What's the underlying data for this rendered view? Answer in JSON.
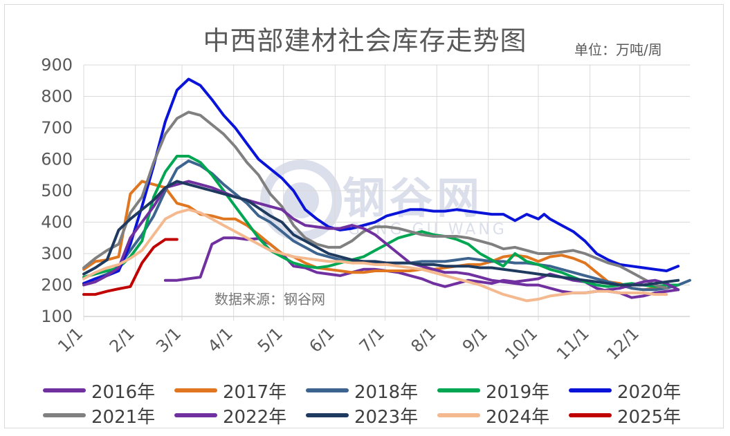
{
  "title": "中西部建材社会库存走势图",
  "unit": "单位：万吨/周",
  "source": "数据来源：钢谷网",
  "watermark": {
    "text": "钢谷网",
    "sub": "GANG GU WANG"
  },
  "chart_data": {
    "type": "line",
    "title": "中西部建材社会库存走势图",
    "xlabel": "",
    "ylabel": "",
    "x_ticks": [
      "1/1",
      "2/1",
      "3/1",
      "4/1",
      "5/1",
      "6/1",
      "7/1",
      "8/1",
      "9/1",
      "10/1",
      "11/1",
      "12/1"
    ],
    "y_ticks": [
      100,
      200,
      300,
      400,
      500,
      600,
      700,
      800,
      900
    ],
    "ylim": [
      100,
      900
    ],
    "grid": "horizontal",
    "legend_position": "bottom",
    "series": [
      {
        "name": "2016年",
        "color": "#7030a0",
        "weeks": [
          8,
          9,
          10,
          11,
          12,
          13,
          14,
          15,
          16,
          17,
          18,
          19,
          20,
          21,
          22,
          23,
          24,
          25,
          26,
          27,
          28,
          29,
          30,
          31,
          32,
          33,
          34,
          35,
          36,
          37,
          38,
          39,
          40,
          41,
          42,
          43,
          44,
          45,
          46,
          47,
          48,
          49,
          50,
          51,
          52
        ],
        "values": [
          215,
          215,
          220,
          225,
          330,
          350,
          350,
          345,
          348,
          330,
          300,
          260,
          255,
          240,
          235,
          230,
          240,
          250,
          250,
          245,
          240,
          230,
          220,
          205,
          195,
          205,
          215,
          210,
          205,
          215,
          210,
          215,
          220,
          235,
          225,
          215,
          210,
          190,
          180,
          175,
          160,
          165,
          175,
          180,
          185
        ]
      },
      {
        "name": "2017年",
        "color": "#e0761f",
        "weeks": [
          1,
          2,
          3,
          4,
          5,
          6,
          7,
          8,
          9,
          10,
          11,
          12,
          13,
          14,
          15,
          16,
          17,
          18,
          19,
          20,
          21,
          22,
          23,
          24,
          25,
          26,
          27,
          28,
          29,
          30,
          31,
          32,
          33,
          34,
          35,
          36,
          37,
          38,
          39,
          40,
          41,
          42,
          43,
          44,
          45,
          46,
          47,
          48,
          49,
          50,
          51,
          52
        ],
        "values": [
          250,
          275,
          280,
          290,
          490,
          530,
          520,
          510,
          460,
          450,
          425,
          420,
          410,
          410,
          390,
          360,
          330,
          300,
          290,
          270,
          255,
          250,
          245,
          240,
          240,
          245,
          245,
          245,
          245,
          250,
          250,
          255,
          260,
          265,
          265,
          275,
          290,
          295,
          290,
          275,
          290,
          295,
          285,
          270,
          240,
          210,
          205,
          190,
          185,
          190,
          200,
          200
        ]
      },
      {
        "name": "2018年",
        "color": "#3d648f",
        "weeks": [
          1,
          2,
          3,
          4,
          5,
          6,
          7,
          8,
          9,
          10,
          11,
          12,
          13,
          14,
          15,
          16,
          17,
          18,
          19,
          20,
          21,
          22,
          23,
          24,
          25,
          26,
          27,
          28,
          29,
          30,
          31,
          32,
          33,
          34,
          35,
          36,
          37,
          38,
          39,
          40,
          41,
          42,
          43,
          44,
          45,
          46,
          47,
          48,
          49,
          50,
          51,
          52,
          53
        ],
        "values": [
          205,
          220,
          235,
          260,
          310,
          360,
          420,
          500,
          570,
          595,
          580,
          555,
          520,
          490,
          460,
          420,
          400,
          370,
          340,
          320,
          300,
          290,
          280,
          275,
          275,
          270,
          270,
          270,
          270,
          275,
          275,
          275,
          280,
          285,
          280,
          275,
          275,
          270,
          270,
          265,
          260,
          250,
          240,
          230,
          220,
          210,
          200,
          190,
          185,
          185,
          190,
          200,
          215
        ]
      },
      {
        "name": "2019年",
        "color": "#00a651",
        "weeks": [
          1,
          2,
          3,
          4,
          5,
          6,
          7,
          8,
          9,
          10,
          11,
          12,
          13,
          14,
          15,
          16,
          17,
          18,
          19,
          20,
          21,
          22,
          23,
          24,
          25,
          26,
          27,
          28,
          29,
          30,
          31,
          32,
          33,
          34,
          35,
          36,
          37,
          38,
          39,
          40,
          41,
          42,
          43,
          44,
          45,
          46,
          47,
          48,
          49,
          50,
          51,
          52
        ],
        "values": [
          225,
          235,
          245,
          255,
          290,
          340,
          480,
          560,
          610,
          610,
          590,
          550,
          500,
          450,
          400,
          350,
          310,
          290,
          270,
          260,
          255,
          260,
          270,
          280,
          290,
          310,
          330,
          350,
          360,
          370,
          360,
          355,
          345,
          330,
          300,
          280,
          260,
          300,
          275,
          265,
          250,
          240,
          225,
          210,
          200,
          195,
          200,
          205,
          200,
          195,
          200,
          200
        ]
      },
      {
        "name": "2020年",
        "color": "#0a14d8",
        "weeks": [
          1,
          2,
          3,
          4,
          5,
          6,
          7,
          8,
          9,
          10,
          11,
          12,
          13,
          14,
          15,
          16,
          17,
          18,
          19,
          20,
          21,
          22,
          23,
          24,
          25,
          26,
          27,
          28,
          29,
          30,
          31,
          32,
          33,
          34,
          35,
          36,
          37,
          38,
          39,
          40,
          40.5,
          41,
          42,
          43,
          44,
          45,
          46,
          47,
          48,
          49,
          50,
          51,
          52
        ],
        "values": [
          205,
          220,
          230,
          245,
          330,
          450,
          580,
          720,
          820,
          855,
          835,
          790,
          740,
          700,
          650,
          600,
          570,
          540,
          500,
          440,
          410,
          385,
          375,
          380,
          390,
          400,
          420,
          430,
          440,
          440,
          435,
          435,
          440,
          435,
          430,
          425,
          425,
          405,
          425,
          410,
          425,
          410,
          390,
          370,
          340,
          300,
          280,
          265,
          260,
          255,
          250,
          245,
          260
        ]
      },
      {
        "name": "2021年",
        "color": "#808080",
        "weeks": [
          1,
          2,
          3,
          4,
          5,
          6,
          7,
          8,
          9,
          10,
          11,
          12,
          13,
          14,
          15,
          16,
          17,
          18,
          19,
          20,
          21,
          22,
          23,
          24,
          25,
          26,
          27,
          28,
          29,
          30,
          31,
          32,
          33,
          34,
          35,
          36,
          37,
          38,
          39,
          40,
          41,
          42,
          43,
          44,
          45,
          46,
          47,
          48,
          49,
          50,
          51
        ],
        "values": [
          255,
          285,
          310,
          330,
          430,
          480,
          590,
          680,
          730,
          750,
          740,
          710,
          680,
          640,
          590,
          550,
          490,
          450,
          390,
          350,
          330,
          320,
          320,
          340,
          370,
          385,
          385,
          380,
          370,
          360,
          355,
          355,
          355,
          350,
          340,
          330,
          315,
          320,
          310,
          300,
          300,
          305,
          310,
          300,
          285,
          270,
          260,
          240,
          220,
          200,
          190
        ]
      },
      {
        "name": "2022年",
        "color": "#7030a0",
        "weeks": [
          1,
          2,
          3,
          4,
          5,
          6,
          7,
          8,
          9,
          10,
          11,
          12,
          13,
          14,
          15,
          16,
          17,
          18,
          19,
          20,
          21,
          22,
          23,
          24,
          25,
          26,
          27,
          28,
          29,
          30,
          31,
          32,
          33,
          34,
          35,
          36,
          37,
          38,
          39,
          40,
          41,
          42,
          43,
          44,
          45,
          46,
          47,
          48,
          49,
          50,
          51,
          52
        ],
        "values": [
          200,
          210,
          230,
          255,
          350,
          400,
          450,
          510,
          520,
          530,
          520,
          510,
          495,
          480,
          470,
          460,
          450,
          440,
          410,
          390,
          385,
          380,
          380,
          390,
          380,
          360,
          330,
          300,
          270,
          260,
          250,
          240,
          240,
          235,
          225,
          215,
          210,
          205,
          200,
          200,
          190,
          180,
          175,
          175,
          180,
          185,
          190,
          200,
          210,
          215,
          205,
          185
        ]
      },
      {
        "name": "2023年",
        "color": "#1f3a5f",
        "weeks": [
          1,
          2,
          3,
          4,
          5,
          6,
          7,
          8,
          9,
          10,
          11,
          12,
          13,
          14,
          15,
          16,
          17,
          18,
          19,
          20,
          21,
          22,
          23,
          24,
          25,
          26,
          27,
          28,
          29,
          30,
          31,
          32,
          33,
          34,
          35,
          36,
          37,
          38,
          39,
          40,
          41,
          42,
          43,
          44,
          45,
          46,
          47,
          48,
          49,
          50,
          51,
          52
        ],
        "values": [
          235,
          255,
          280,
          375,
          410,
          440,
          470,
          510,
          530,
          520,
          510,
          500,
          490,
          480,
          470,
          445,
          420,
          400,
          360,
          340,
          320,
          300,
          290,
          280,
          275,
          275,
          270,
          270,
          270,
          265,
          265,
          260,
          260,
          260,
          255,
          255,
          250,
          245,
          240,
          235,
          230,
          225,
          220,
          215,
          210,
          205,
          200,
          200,
          200,
          205,
          210,
          215
        ]
      },
      {
        "name": "2024年",
        "color": "#f4b98e",
        "weeks": [
          1,
          2,
          3,
          4,
          5,
          6,
          7,
          8,
          9,
          10,
          11,
          12,
          13,
          14,
          15,
          16,
          17,
          18,
          19,
          20,
          21,
          22,
          23,
          24,
          25,
          26,
          27,
          28,
          29,
          30,
          31,
          32,
          33,
          34,
          35,
          36,
          37,
          38,
          39,
          40,
          41,
          42,
          43,
          44,
          45,
          46,
          47,
          48,
          49,
          50,
          51
        ],
        "values": [
          220,
          240,
          255,
          265,
          285,
          310,
          360,
          410,
          430,
          440,
          430,
          410,
          390,
          370,
          350,
          330,
          310,
          300,
          290,
          285,
          280,
          275,
          275,
          270,
          270,
          265,
          265,
          260,
          255,
          250,
          240,
          230,
          220,
          210,
          200,
          185,
          170,
          160,
          150,
          155,
          165,
          170,
          175,
          175,
          180,
          180,
          175,
          175,
          175,
          170,
          170
        ]
      },
      {
        "name": "2025年",
        "color": "#c00000",
        "weeks": [
          1,
          2,
          3,
          4,
          5,
          6,
          7,
          8,
          9
        ],
        "values": [
          170,
          170,
          180,
          188,
          195,
          270,
          320,
          345,
          345
        ]
      }
    ]
  }
}
